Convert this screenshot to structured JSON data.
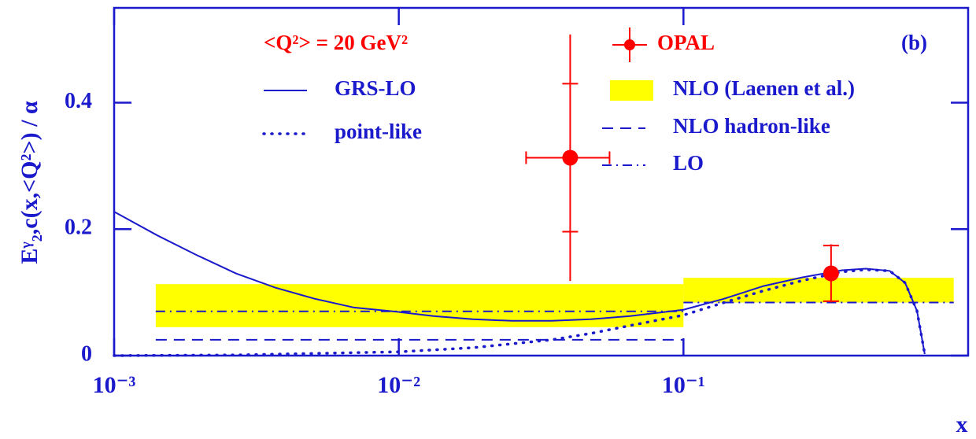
{
  "chart_data": {
    "type": "line",
    "x_label": "x",
    "y_label": "Eᵞ₂,c(x,<Q²>) / α",
    "annotations": [
      "<Q²> = 20 GeV²",
      "(b)"
    ],
    "xscale": "log",
    "xlim": [
      0.001,
      1
    ],
    "ylim": [
      0,
      0.55
    ],
    "xticks": [
      {
        "value": 0.001,
        "label": "10⁻³"
      },
      {
        "value": 0.01,
        "label": "10⁻²"
      },
      {
        "value": 0.1,
        "label": "10⁻¹"
      }
    ],
    "yticks": [
      0,
      0.2,
      0.4
    ],
    "axis_color": "#1a1acc",
    "series": [
      {
        "name": "OPAL",
        "type": "errorbar",
        "color": "#ff0000",
        "x": [
          0.04,
          0.33
        ],
        "values": [
          0.313,
          0.13
        ],
        "stat_err": [
          0.117,
          0.044
        ],
        "total_err": [
          0.195,
          0.046
        ],
        "x_low": [
          0.028,
          null
        ],
        "x_high": [
          0.055,
          null
        ]
      },
      {
        "name": "NLO (Laenen et al.)",
        "type": "band",
        "color": "#ffff00",
        "bins": [
          0.0014,
          0.1,
          0.89
        ],
        "lower": [
          0.045,
          0.084
        ],
        "upper": [
          0.113,
          0.123
        ]
      },
      {
        "name": "NLO hadron-like",
        "type": "step",
        "style": "dashed",
        "color": "#1a1acc",
        "bins": [
          0.0014,
          0.1,
          0.89
        ],
        "values": [
          0.025,
          0
        ]
      },
      {
        "name": "LO",
        "type": "step",
        "style": "dashdot",
        "color": "#1a1acc",
        "bins": [
          0.0014,
          0.1,
          0.89
        ],
        "values": [
          0.07,
          0.084
        ]
      },
      {
        "name": "GRS-LO",
        "type": "line",
        "style": "solid",
        "color": "#1a1acc",
        "x": [
          0.001,
          0.00142,
          0.00195,
          0.00268,
          0.00368,
          0.00506,
          0.00696,
          0.01,
          0.01324,
          0.0182,
          0.025,
          0.0344,
          0.0472,
          0.0649,
          0.1,
          0.139,
          0.191,
          0.263,
          0.361,
          0.437,
          0.53,
          0.601,
          0.661,
          0.704
        ],
        "values": [
          0.2275,
          0.19,
          0.159,
          0.13,
          0.1075,
          0.09,
          0.076,
          0.069,
          0.0625,
          0.0575,
          0.055,
          0.055,
          0.0575,
          0.0625,
          0.0725,
          0.09,
          0.11,
          0.124,
          0.135,
          0.1375,
          0.134,
          0.115,
          0.071,
          0.0025
        ]
      },
      {
        "name": "point-like",
        "type": "line",
        "style": "dotted",
        "color": "#1a1acc",
        "x": [
          0.001,
          0.00268,
          0.01,
          0.0182,
          0.0344,
          0.0472,
          0.0649,
          0.1,
          0.139,
          0.191,
          0.263,
          0.361,
          0.437,
          0.53,
          0.601,
          0.661,
          0.704
        ],
        "values": [
          0,
          0.001,
          0.006,
          0.0125,
          0.025,
          0.035,
          0.0475,
          0.064,
          0.084,
          0.1025,
          0.119,
          0.1325,
          0.136,
          0.134,
          0.115,
          0.071,
          0.0025
        ]
      }
    ]
  }
}
